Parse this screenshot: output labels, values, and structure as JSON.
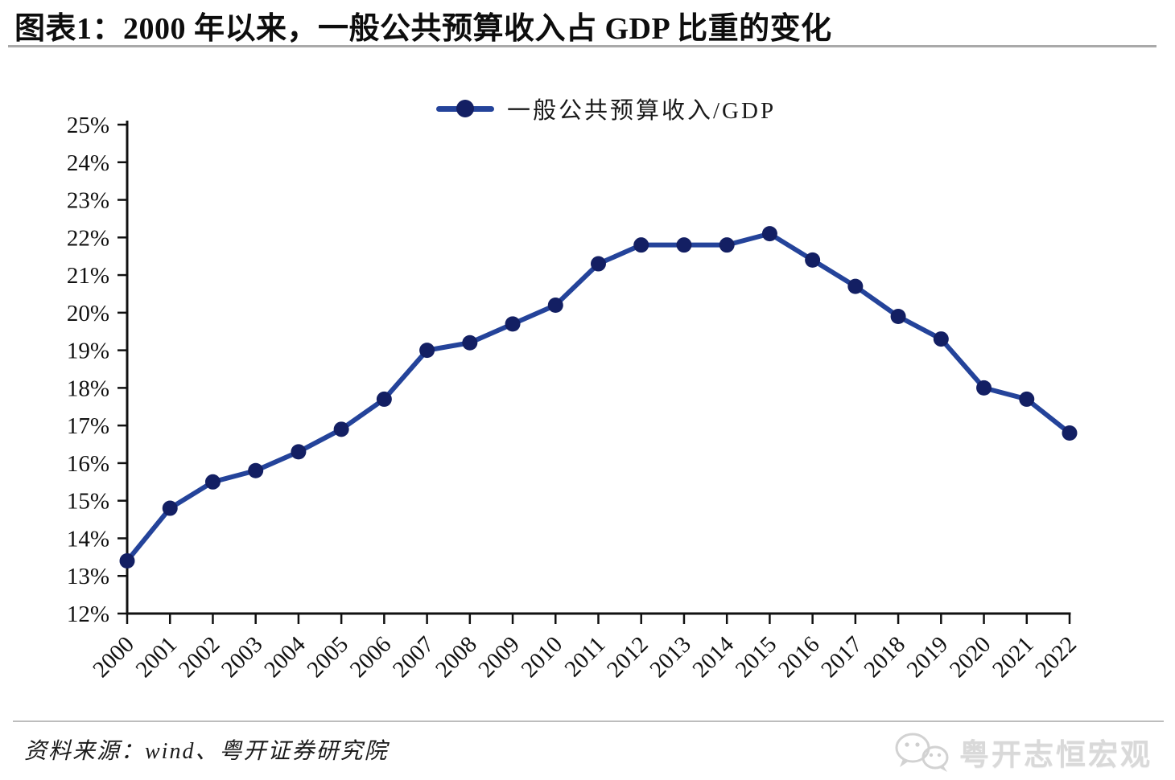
{
  "header": {
    "title": "图表1：2000 年以来，一般公共预算收入占 GDP 比重的变化"
  },
  "legend": {
    "label": "一般公共预算收入/GDP"
  },
  "footer": {
    "source": "资料来源：wind、粤开证券研究院",
    "watermark": "粤开志恒宏观",
    "watermark_icon": "wechat-logo-icon"
  },
  "colors": {
    "series_line": "#24439A",
    "series_marker": "#131F63",
    "axis": "#111111",
    "tick_text": "#111111",
    "header_rule": "#a9a9a9",
    "footer_rule": "#bdbdbd",
    "watermark_gray": "#d9d9d9",
    "background": "#ffffff"
  },
  "chart_data": {
    "type": "line",
    "title": "",
    "xlabel": "",
    "ylabel": "",
    "x": [
      2000,
      2001,
      2002,
      2003,
      2004,
      2005,
      2006,
      2007,
      2008,
      2009,
      2010,
      2011,
      2012,
      2013,
      2014,
      2015,
      2016,
      2017,
      2018,
      2019,
      2020,
      2021,
      2022
    ],
    "series": [
      {
        "name": "一般公共预算收入/GDP",
        "values": [
          13.4,
          14.8,
          15.5,
          15.8,
          16.3,
          16.9,
          17.7,
          19.0,
          19.2,
          19.7,
          20.2,
          21.3,
          21.8,
          21.8,
          21.8,
          22.1,
          21.4,
          20.7,
          19.9,
          19.3,
          18.0,
          17.7,
          16.8
        ]
      }
    ],
    "ylim": [
      12,
      25
    ],
    "ytick_step": 1,
    "ytick_suffix": "%",
    "xtick_rotation": 45,
    "grid": false,
    "legend_position": "top-center",
    "marker": "circle"
  }
}
